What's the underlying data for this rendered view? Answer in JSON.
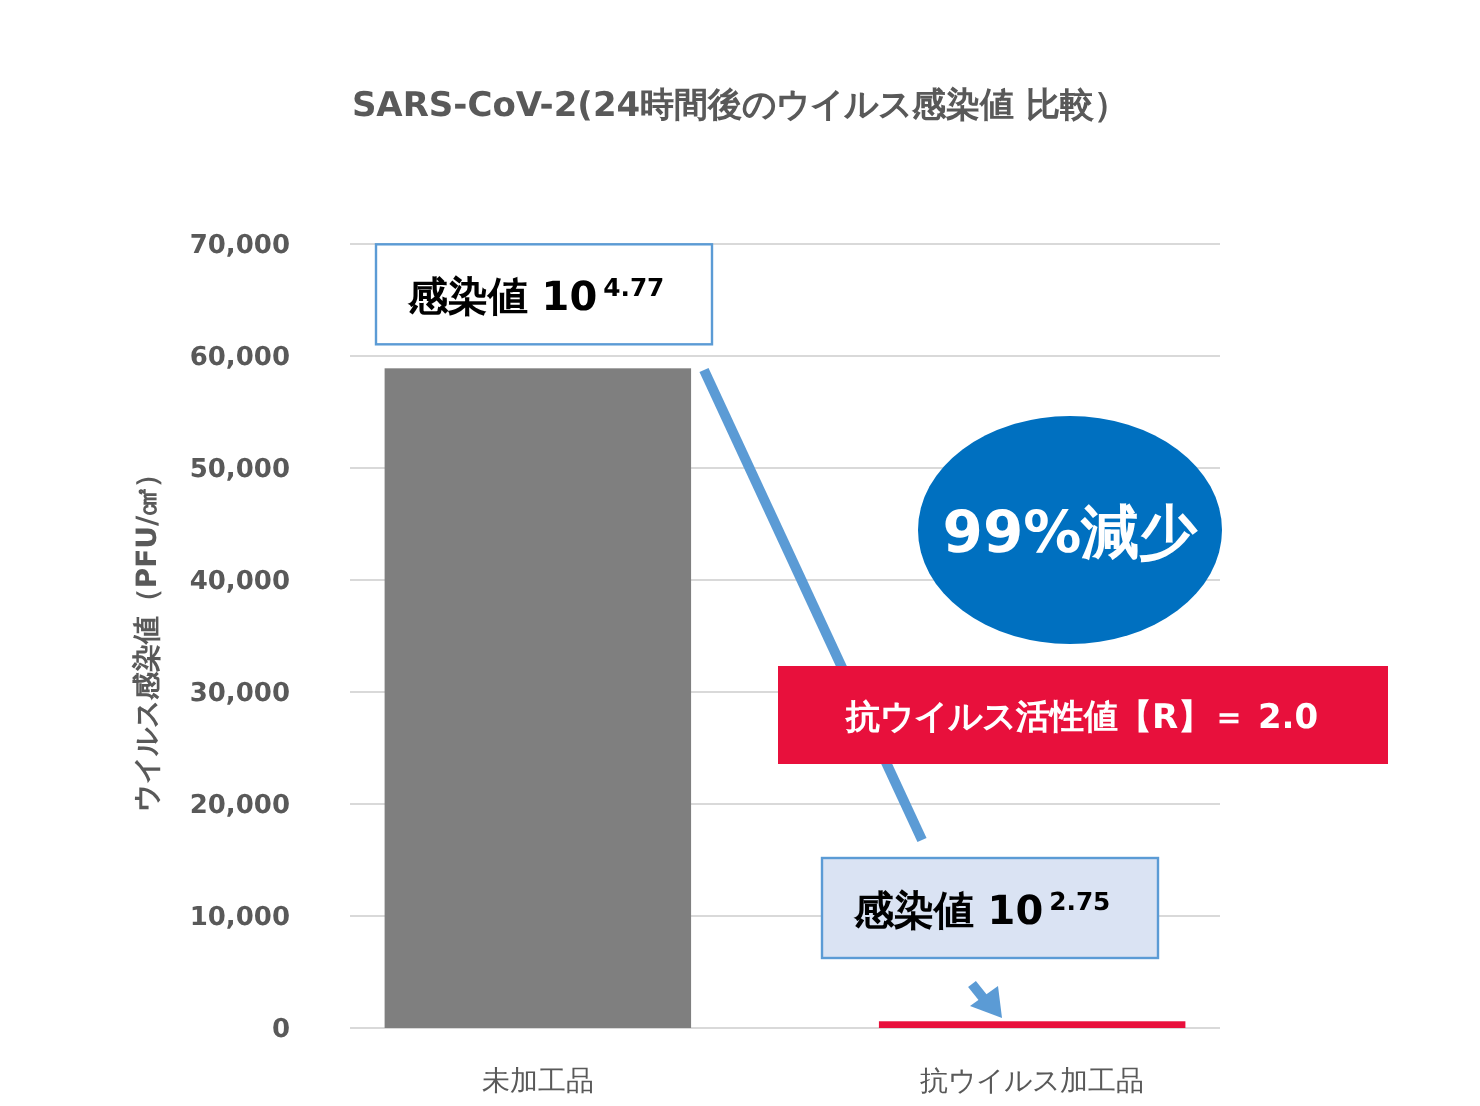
{
  "chart_data": {
    "type": "bar",
    "title": "SARS-CoV-2(24時間後のウイルス感染値 比較）",
    "ylabel": "ウイルス感染値（PFU/㎠）",
    "categories": [
      "未加工品",
      "抗ウイルス加工品"
    ],
    "values": [
      58900,
      600
    ],
    "colors": [
      "#7f7f7f",
      "#e8103c"
    ],
    "value_labels": [
      "感染値 10$^{4.77}$",
      "感染値 10$^{2.75}$"
    ],
    "ylim": [
      0,
      70000
    ],
    "yticks": [
      {
        "value": 0,
        "label": "0"
      },
      {
        "value": 10000,
        "label": "10,000"
      },
      {
        "value": 20000,
        "label": "20,000"
      },
      {
        "value": 30000,
        "label": "30,000"
      },
      {
        "value": 40000,
        "label": "40,000"
      },
      {
        "value": 50000,
        "label": "50,000"
      },
      {
        "value": 60000,
        "label": "60,000"
      },
      {
        "value": 70000,
        "label": "70,000"
      }
    ],
    "grid": "y",
    "annotations": [
      "99%減少",
      "抗ウイルス活性値【R】＝ 2.0"
    ]
  }
}
